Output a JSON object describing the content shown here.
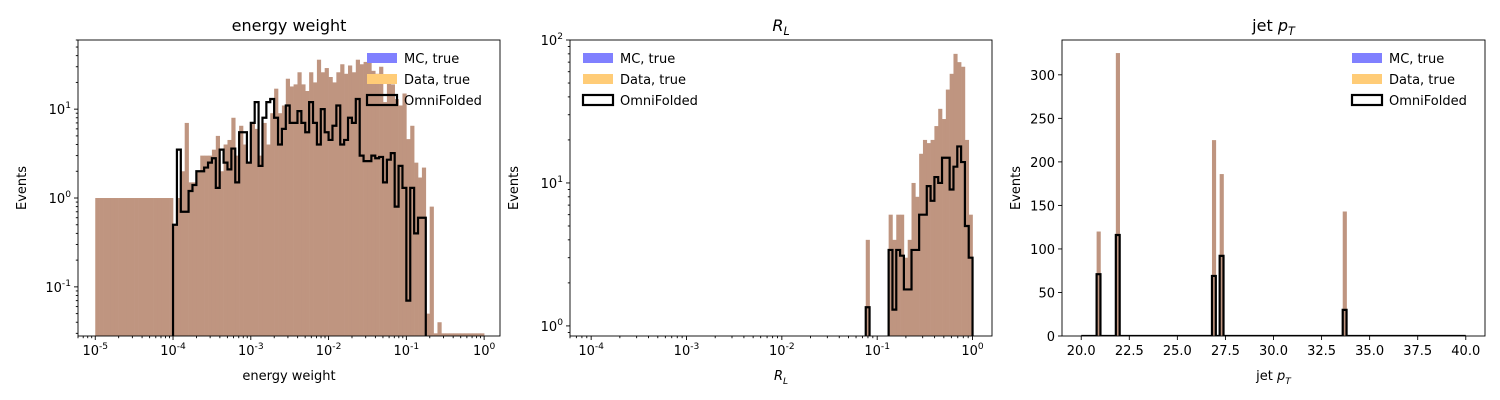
{
  "colors": {
    "mc": "#8080ff",
    "data": "#ffcc77",
    "overlap": "#bf9580",
    "omnifolded": "#000000"
  },
  "legend_labels": [
    "MC, true",
    "Data, true",
    "OmniFolded"
  ],
  "chart_data": [
    {
      "type": "histogram",
      "title": "energy weight",
      "xlabel": "energy weight",
      "ylabel": "Events",
      "xscale": "log",
      "yscale": "log",
      "xlim": [
        6e-06,
        1.6
      ],
      "ylim": [
        0.028,
        60
      ],
      "x_ticks": [
        1e-05,
        0.0001,
        0.001,
        0.01,
        0.1,
        1
      ],
      "x_tick_labels": [
        "10^-5",
        "10^-4",
        "10^-3",
        "10^-2",
        "10^-1",
        "10^0"
      ],
      "y_ticks": [
        0.1,
        1,
        10
      ],
      "y_tick_labels": [
        "10^-1",
        "10^0",
        "10^1"
      ],
      "legend_position": "upper right",
      "bin_range": [
        1e-05,
        1
      ],
      "n_bins": 100,
      "data_true": [
        1,
        1,
        1,
        1,
        1,
        1,
        1,
        1,
        1,
        1,
        1,
        1,
        1,
        1,
        1,
        1,
        1,
        1,
        1,
        1,
        0.5,
        1,
        2,
        7,
        1.5,
        1.5,
        2,
        3,
        3,
        3,
        3.5,
        5,
        2,
        4,
        4.5,
        8,
        3,
        6.5,
        4,
        2.5,
        7,
        6,
        3,
        7,
        4,
        9,
        17,
        9,
        11,
        22,
        18,
        19,
        26,
        19,
        16,
        26,
        20,
        36,
        26,
        29,
        23,
        20,
        26,
        32,
        25,
        31,
        26,
        36,
        32,
        34,
        40,
        27,
        25,
        30,
        12,
        24,
        19,
        13,
        11,
        15,
        4.6,
        6.5,
        2.5,
        1.7,
        2.2,
        0.05,
        0.8,
        0.03,
        0.04,
        0.03,
        0.03,
        0.03,
        0.03,
        0.03,
        0.03,
        0.03,
        0.03,
        0.03,
        0.03,
        0.03
      ],
      "omnifolded": [
        0.5,
        3.5,
        0.7,
        0.7,
        1.2,
        1.4,
        2,
        2,
        2.2,
        2.5,
        2.8,
        1.3,
        3.5,
        2.5,
        2.1,
        3.6,
        1.5,
        5.5,
        5.5,
        2.5,
        7,
        12,
        2.3,
        8,
        12,
        13,
        8,
        4,
        6,
        11,
        7,
        7,
        9.5,
        7,
        5.5,
        12,
        7,
        4,
        10,
        5.5,
        4.5,
        6.5,
        11,
        4,
        4.5,
        8,
        7,
        13,
        3,
        2.6,
        2.6,
        3,
        2.8,
        2.9,
        1.5,
        2.7,
        3.2,
        0.8,
        2.3,
        1.3,
        0.07,
        1.3,
        0.4,
        0.6,
        0.6
      ],
      "omnifolded_start_bin": 20
    },
    {
      "type": "histogram",
      "title": "R_L",
      "xlabel": "R_L",
      "ylabel": "Events",
      "xscale": "log",
      "yscale": "log",
      "xlim": [
        6e-05,
        1.6
      ],
      "ylim": [
        0.85,
        100
      ],
      "x_ticks": [
        0.0001,
        0.001,
        0.01,
        0.1,
        1
      ],
      "x_tick_labels": [
        "10^-4",
        "10^-3",
        "10^-2",
        "10^-1",
        "10^0"
      ],
      "y_ticks": [
        1,
        10,
        100
      ],
      "y_tick_labels": [
        "10^0",
        "10^1",
        "10^2"
      ],
      "legend_position": "upper left",
      "bin_range": [
        0.0001,
        1
      ],
      "n_bins": 100,
      "data_true": [
        0,
        0,
        0,
        0,
        0,
        0,
        0,
        0,
        0,
        0,
        0,
        0,
        0,
        0,
        0,
        0,
        0,
        0,
        0,
        0,
        0,
        0,
        0,
        0,
        0,
        0,
        0,
        0,
        0,
        0,
        0,
        0,
        0,
        0,
        0,
        0,
        0,
        0,
        0,
        0,
        0,
        0,
        0,
        0,
        0,
        0,
        0,
        0,
        0,
        0,
        0,
        0,
        0,
        0,
        0,
        0,
        0,
        0,
        0,
        0,
        0,
        0,
        0,
        0,
        0,
        0,
        0,
        0,
        0,
        0,
        0,
        0,
        4,
        0,
        0,
        0,
        0,
        0,
        6,
        4,
        6,
        6,
        3,
        4,
        10,
        8,
        16,
        20,
        19,
        20,
        25,
        33,
        28,
        45,
        58,
        80,
        70,
        65,
        20,
        6
      ],
      "omnifolded": [
        0,
        0,
        0,
        0,
        0,
        0,
        0,
        0,
        0,
        0,
        0,
        0,
        0,
        0,
        0,
        0,
        0,
        0,
        0,
        0,
        0,
        0,
        0,
        0,
        0,
        0,
        0,
        0,
        0,
        0,
        0,
        0,
        0,
        0,
        0,
        0,
        0,
        0,
        0,
        0,
        0,
        0,
        0,
        0,
        0,
        0,
        0,
        0,
        0,
        0,
        0,
        0,
        0,
        0,
        0,
        0,
        0,
        0,
        0,
        0,
        0,
        0,
        0,
        0,
        0,
        0,
        0,
        0,
        0,
        0,
        0,
        0,
        1.35,
        0,
        0,
        0,
        0,
        0,
        3.4,
        1.3,
        3.4,
        3.1,
        1.8,
        1.8,
        3.4,
        3.4,
        6,
        6,
        9.5,
        7.5,
        11,
        10,
        15,
        15,
        9,
        13,
        18,
        14,
        5,
        3
      ]
    },
    {
      "type": "histogram",
      "title": "jet p_T",
      "xlabel": "jet p_T",
      "ylabel": "Events",
      "xscale": "linear",
      "yscale": "linear",
      "xlim": [
        19,
        41
      ],
      "ylim": [
        0,
        340
      ],
      "x_ticks": [
        20,
        22.5,
        25,
        27.5,
        30,
        32.5,
        35,
        37.5,
        40
      ],
      "x_tick_labels": [
        "20.0",
        "22.5",
        "25.0",
        "27.5",
        "30.0",
        "32.5",
        "35.0",
        "37.5",
        "40.0"
      ],
      "y_ticks": [
        0,
        50,
        100,
        150,
        200,
        250,
        300
      ],
      "y_tick_labels": [
        "0",
        "50",
        "100",
        "150",
        "200",
        "250",
        "300"
      ],
      "legend_position": "upper right",
      "bin_range": [
        20,
        40
      ],
      "n_bins": 100,
      "data_true_bins": [
        [
          4,
          120
        ],
        [
          9,
          325
        ],
        [
          34,
          225
        ],
        [
          36,
          186
        ],
        [
          68,
          143
        ]
      ],
      "omnifolded_bins": [
        [
          4,
          71
        ],
        [
          9,
          116
        ],
        [
          34,
          69
        ],
        [
          36,
          92
        ],
        [
          68,
          30
        ]
      ]
    }
  ]
}
